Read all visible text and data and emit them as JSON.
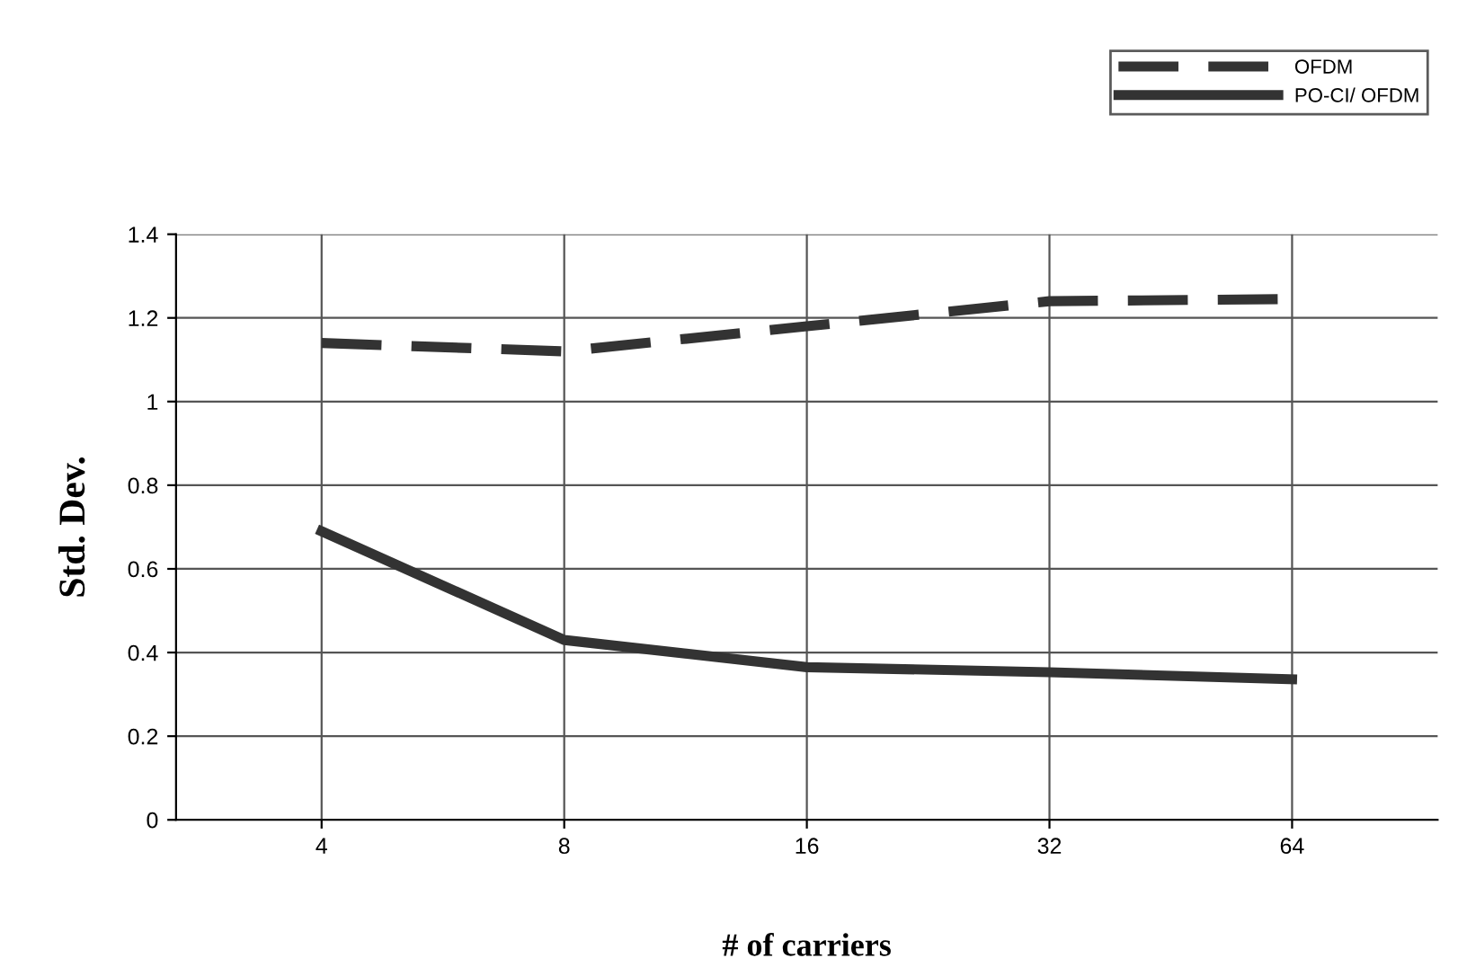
{
  "chart_data": {
    "type": "line",
    "xlabel": "# of carriers",
    "ylabel": "Std. Dev.",
    "categories": [
      "4",
      "8",
      "16",
      "32",
      "64"
    ],
    "series": [
      {
        "name": "OFDM",
        "color": "#333333",
        "line_style": "dashed",
        "values": [
          1.14,
          1.12,
          1.18,
          1.24,
          1.245
        ]
      },
      {
        "name": "PO-CI/ OFDM",
        "color": "#333333",
        "line_style": "solid",
        "values": [
          0.69,
          0.43,
          0.365,
          0.353,
          0.336
        ]
      }
    ],
    "ylim": [
      0,
      1.4
    ],
    "yticks": [
      0,
      0.2,
      0.4,
      0.6,
      0.8,
      1,
      1.2,
      1.4
    ],
    "grid": true,
    "legend": "top right",
    "marker": "none"
  }
}
